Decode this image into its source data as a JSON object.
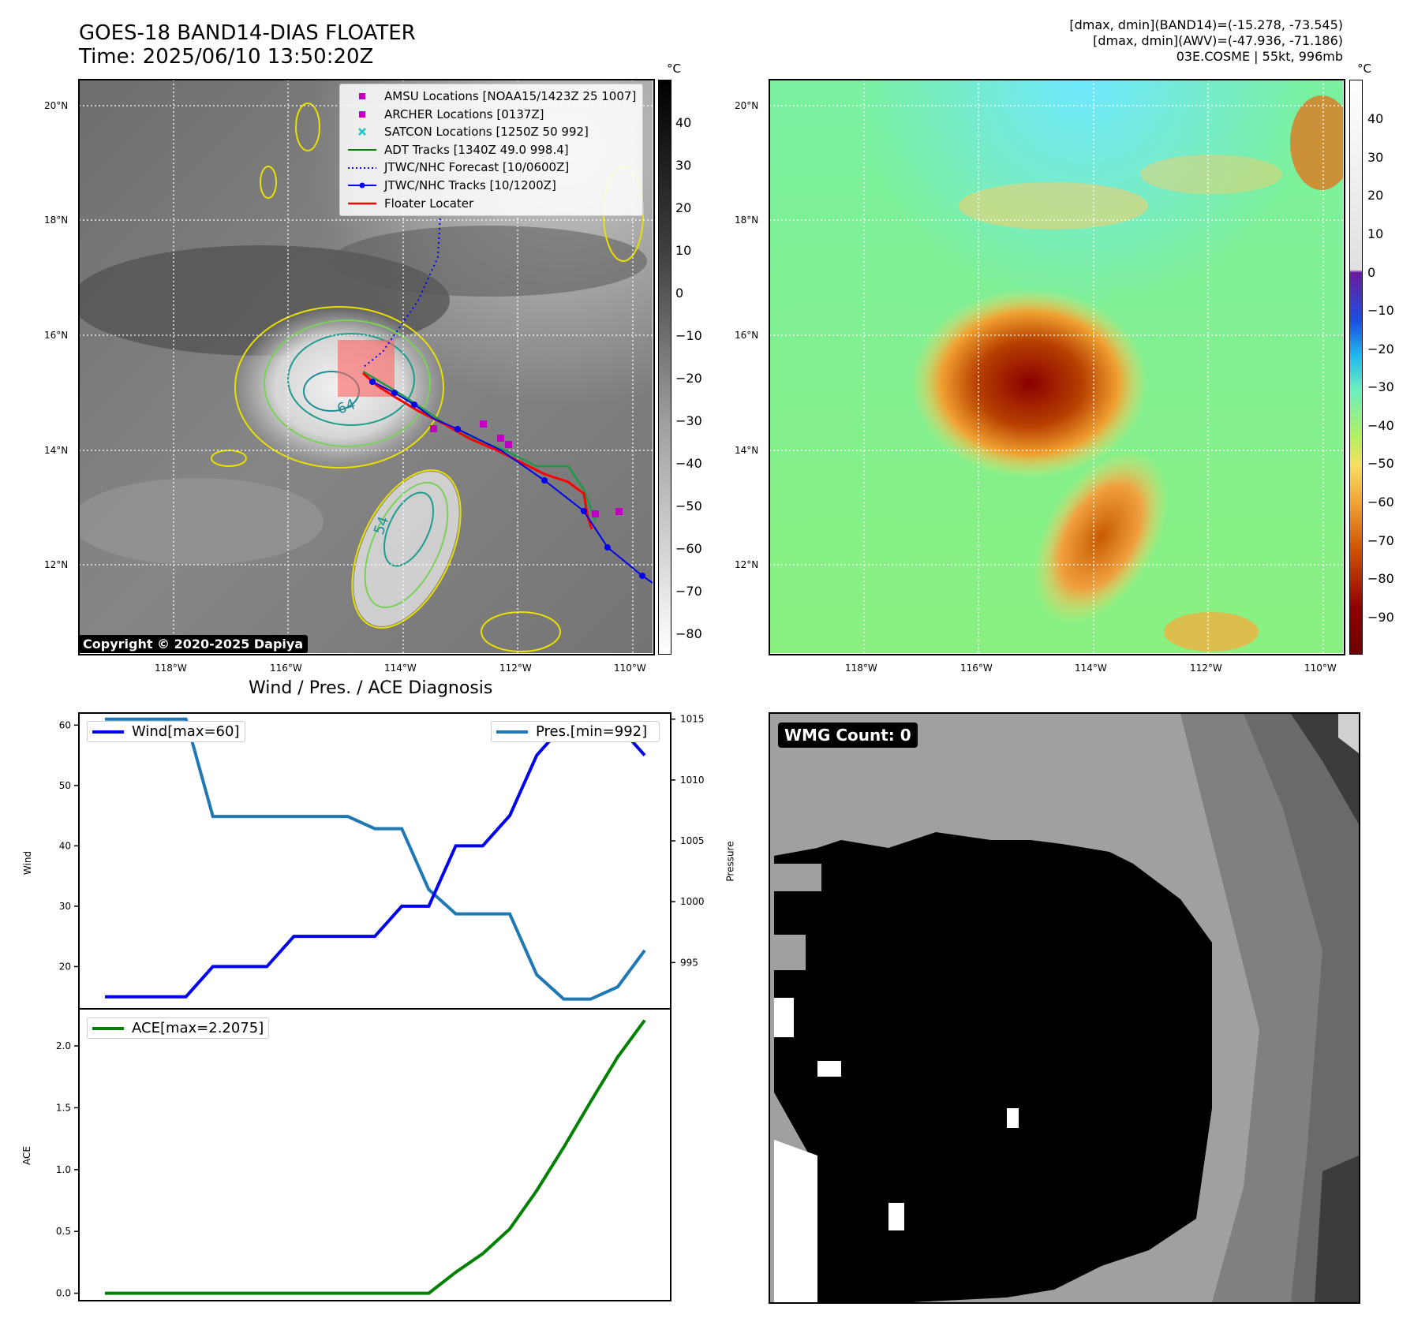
{
  "header": {
    "title_line1": "GOES-18 BAND14-DIAS FLOATER",
    "title_line2": "Time: 2025/06/10 13:50:20Z",
    "info_line1": "[dmax, dmin](BAND14)=(-15.278, -73.545)",
    "info_line2": "[dmax, dmin](AWV)=(-47.936, -71.186)",
    "info_line3": "03E.COSME | 55kt, 996mb"
  },
  "maps": {
    "lat_labels": [
      "20°N",
      "18°N",
      "16°N",
      "14°N",
      "12°N"
    ],
    "lon_labels": [
      "118°W",
      "116°W",
      "114°W",
      "112°W",
      "110°W"
    ],
    "contour_labels": [
      "64",
      "54"
    ],
    "copyright": "Copyright © 2020-2025 Dapiya",
    "legend": [
      {
        "label": "AMSU Locations [NOAA15/1423Z 25 1007]",
        "kind": "square",
        "color": "#c000c0"
      },
      {
        "label": "ARCHER Locations [0137Z]",
        "kind": "square",
        "color": "#c000c0"
      },
      {
        "label": "SATCON Locations [1250Z 50 992]",
        "kind": "x",
        "color": "#20c0c0"
      },
      {
        "label": "ADT Tracks [1340Z 49.0 998.4]",
        "kind": "line",
        "color": "#008000"
      },
      {
        "label": "JTWC/NHC Forecast [10/0600Z]",
        "kind": "dotted",
        "color": "#0000ff"
      },
      {
        "label": "JTWC/NHC Tracks [10/1200Z]",
        "kind": "dotline",
        "color": "#0000ff"
      },
      {
        "label": "Floater Locater",
        "kind": "line",
        "color": "#ff0000"
      }
    ],
    "left_colorbar": {
      "unit": "°C",
      "ticks": [
        "40",
        "30",
        "20",
        "10",
        "0",
        "−10",
        "−20",
        "−30",
        "−40",
        "−50",
        "−60",
        "−70",
        "−80"
      ]
    },
    "right_colorbar": {
      "unit": "°C",
      "ticks": [
        "40",
        "30",
        "20",
        "10",
        "0",
        "−10",
        "−20",
        "−30",
        "−40",
        "−50",
        "−60",
        "−70",
        "−80",
        "−90"
      ]
    }
  },
  "diagnosis": {
    "title": "Wind / Pres. / ACE Diagnosis",
    "wind_label": "Wind",
    "pressure_label": "Pressure",
    "ace_label": "ACE",
    "wind_legend": "Wind[max=60]",
    "pres_legend": "Pres.[min=992]",
    "ace_legend": "ACE[max=2.2075]",
    "wind_ticks": [
      "60",
      "50",
      "40",
      "30",
      "20"
    ],
    "pres_ticks": [
      "1015",
      "1010",
      "1005",
      "1000",
      "995"
    ],
    "ace_ticks": [
      "2.0",
      "1.5",
      "1.0",
      "0.5",
      "0.0"
    ],
    "wmg_count": "WMG Count: 0"
  },
  "colors": {
    "wind": "#0000ee",
    "pressure": "#1f77b4",
    "ace": "#008000"
  },
  "chart_data": [
    {
      "type": "line",
      "title": "Wind / Pres. / ACE Diagnosis",
      "ylabel": "Wind",
      "ylim": [
        13,
        62
      ],
      "series": [
        {
          "name": "Wind[max=60]",
          "values": [
            15,
            15,
            15,
            15,
            20,
            20,
            20,
            25,
            25,
            25,
            25,
            30,
            30,
            40,
            40,
            45,
            55,
            60,
            60,
            60,
            55
          ]
        }
      ]
    },
    {
      "type": "line",
      "ylabel": "Pressure",
      "ylim": [
        991.2,
        1015.5
      ],
      "series": [
        {
          "name": "Pres.[min=992]",
          "values": [
            1015,
            1015,
            1015,
            1015,
            1007,
            1007,
            1007,
            1007,
            1007,
            1007,
            1006,
            1006,
            1001,
            999,
            999,
            999,
            994,
            992,
            992,
            993,
            996
          ]
        }
      ]
    },
    {
      "type": "line",
      "ylabel": "ACE",
      "ylim": [
        -0.06,
        2.3
      ],
      "series": [
        {
          "name": "ACE[max=2.2075]",
          "values": [
            0,
            0,
            0,
            0,
            0,
            0,
            0,
            0,
            0,
            0,
            0,
            0,
            0,
            0.17,
            0.32,
            0.52,
            0.83,
            1.18,
            1.55,
            1.91,
            2.2075
          ]
        }
      ]
    }
  ]
}
